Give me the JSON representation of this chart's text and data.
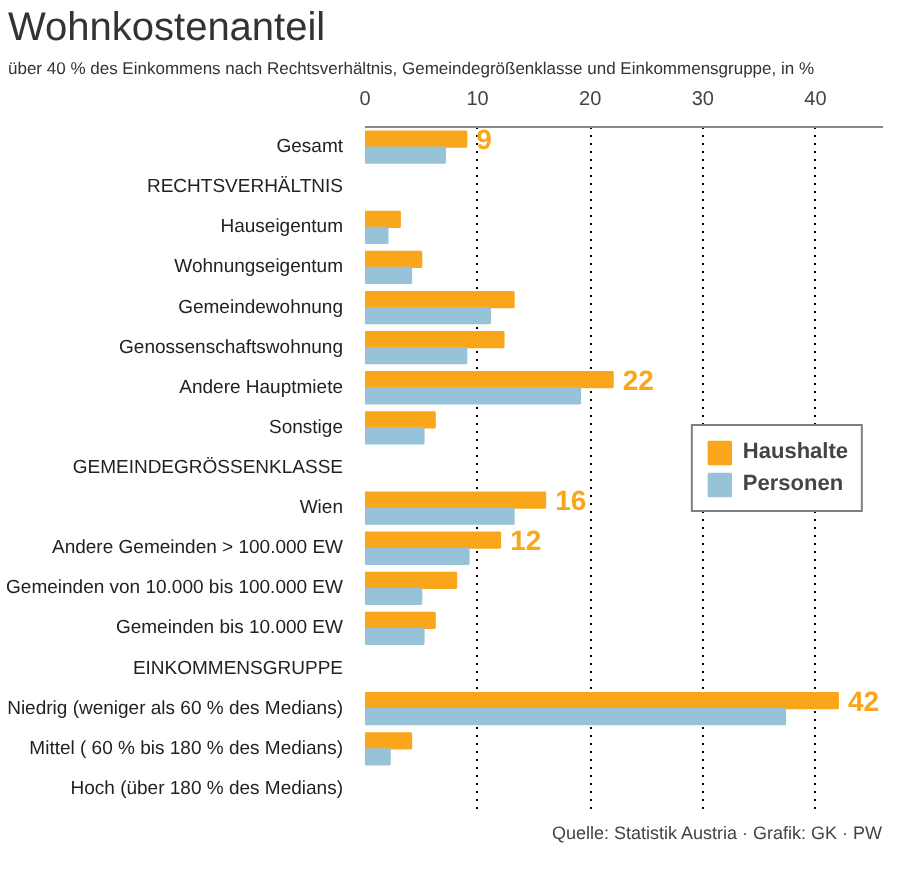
{
  "chart_data": {
    "type": "bar",
    "orientation": "horizontal",
    "title": "Wohnkostenanteil",
    "subtitle": "über 40 % des Einkommens nach Rechtsverhältnis, Gemeindegrößenklasse und Einkommensgruppe, in %",
    "categories": [
      "Gesamt",
      "RECHTSVERHÄLTNIS",
      "Hauseigentum",
      "Wohnungseigentum",
      "Gemeindewohnung",
      "Genossenschaftswohnung",
      "Andere Hauptmiete",
      "Sonstige",
      "GEMEINDEGRÖSSENKLASSE",
      "Wien",
      "Andere Gemeinden > 100.000 EW",
      "Gemeinden von 10.000 bis 100.000 EW",
      "Gemeinden bis 10.000 EW",
      "EINKOMMENSGRUPPE",
      "Niedrig (weniger als 60 % des Medians)",
      "Mittel ( 60 % bis 180 % des Medians)",
      "Hoch (über 180 % des Medians)"
    ],
    "series": [
      {
        "name": "Haushalte",
        "color": "#f9a61a",
        "values": [
          9,
          null,
          3.1,
          5.0,
          13.2,
          12.3,
          22,
          6.2,
          null,
          16,
          12,
          8.1,
          6.2,
          null,
          42,
          4.1,
          null
        ],
        "value_labels": [
          "9",
          null,
          null,
          null,
          null,
          null,
          "22",
          null,
          null,
          "16",
          "12",
          null,
          null,
          null,
          "42",
          null,
          null
        ]
      },
      {
        "name": "Personen",
        "color": "#97c3d8",
        "values": [
          7.1,
          null,
          2.0,
          4.1,
          11.1,
          9.0,
          19.1,
          5.2,
          null,
          13.2,
          9.2,
          5.0,
          5.2,
          null,
          37.3,
          2.2,
          null
        ]
      }
    ],
    "xlim": [
      0,
      46
    ],
    "xticks": [
      0,
      10,
      20,
      30,
      40
    ],
    "grid": "x",
    "legend": "right",
    "annotations": [
      "Quelle: Statistik Austria · Grafik: GK · PW"
    ]
  }
}
